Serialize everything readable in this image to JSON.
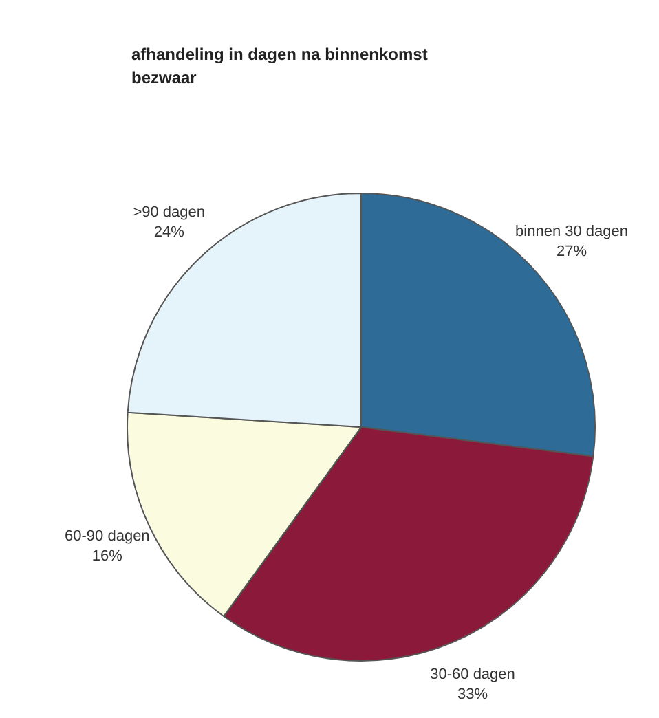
{
  "chart_data": {
    "type": "pie",
    "title": "afhandeling in dagen na binnenkomst\nbezwaar",
    "categories": [
      "binnen 30 dagen",
      "30-60 dagen",
      "60-90 dagen",
      ">90 dagen"
    ],
    "values": [
      27,
      33,
      16,
      24
    ],
    "value_labels": [
      "27%",
      "33%",
      "16%",
      "24%"
    ],
    "colors": [
      "#2e6b96",
      "#8b1a3a",
      "#fbfbe0",
      "#e4f4fa"
    ]
  }
}
